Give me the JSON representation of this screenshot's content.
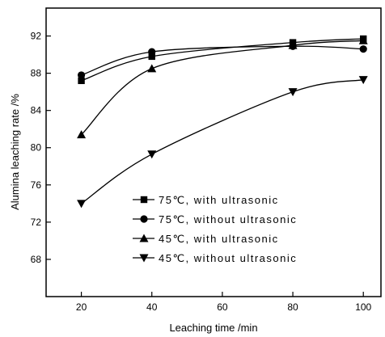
{
  "chart_data": {
    "type": "line",
    "title": "",
    "xlabel": "Leaching time /min",
    "ylabel": "Alumina leaching rate /%",
    "xlim": [
      10,
      105
    ],
    "ylim": [
      64,
      95
    ],
    "xticks": [
      20,
      40,
      60,
      80,
      100
    ],
    "yticks": [
      68,
      72,
      76,
      80,
      84,
      88,
      92
    ],
    "grid": false,
    "legend_position": "bottom-right",
    "series": [
      {
        "name": "75℃, with ultrasonic",
        "marker": "square",
        "x": [
          20,
          40,
          80,
          100
        ],
        "y": [
          87.2,
          89.8,
          91.3,
          91.7
        ]
      },
      {
        "name": "75℃, without ultrasonic",
        "marker": "circle",
        "x": [
          20,
          40,
          80,
          100
        ],
        "y": [
          87.8,
          90.3,
          90.9,
          90.6
        ]
      },
      {
        "name": "45℃, with ultrasonic",
        "marker": "triangle-up",
        "x": [
          20,
          40,
          80,
          100
        ],
        "y": [
          81.4,
          88.5,
          91.0,
          91.5
        ]
      },
      {
        "name": "45℃, without ultrasonic",
        "marker": "triangle-down",
        "x": [
          20,
          40,
          80,
          100
        ],
        "y": [
          74.0,
          79.3,
          86.0,
          87.3
        ]
      }
    ]
  }
}
